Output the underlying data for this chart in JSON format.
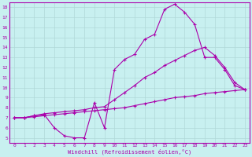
{
  "xlabel": "Windchill (Refroidissement éolien,°C)",
  "bg_color": "#c8f0f0",
  "grid_color": "#b0d8d8",
  "line_color": "#aa00aa",
  "xlim": [
    -0.5,
    23.5
  ],
  "ylim": [
    4.5,
    18.5
  ],
  "yticks": [
    5,
    6,
    7,
    8,
    9,
    10,
    11,
    12,
    13,
    14,
    15,
    16,
    17,
    18
  ],
  "xticks": [
    0,
    1,
    2,
    3,
    4,
    5,
    6,
    7,
    8,
    9,
    10,
    11,
    12,
    13,
    14,
    15,
    16,
    17,
    18,
    19,
    20,
    21,
    22,
    23
  ],
  "line1_x": [
    0,
    1,
    2,
    3,
    4,
    5,
    6,
    7,
    8,
    9,
    10,
    11,
    12,
    13,
    14,
    15,
    16,
    17,
    18,
    19,
    20,
    21,
    22,
    23
  ],
  "line1_y": [
    7.0,
    7.0,
    7.2,
    7.3,
    6.0,
    5.2,
    5.0,
    5.0,
    8.5,
    6.0,
    11.8,
    12.8,
    13.3,
    14.8,
    15.3,
    17.8,
    18.3,
    17.5,
    16.3,
    13.0,
    13.0,
    11.8,
    10.2,
    9.8
  ],
  "line2_x": [
    0,
    1,
    2,
    3,
    4,
    5,
    6,
    7,
    8,
    9,
    10,
    11,
    12,
    13,
    14,
    15,
    16,
    17,
    18,
    19,
    20,
    21,
    22,
    23
  ],
  "line2_y": [
    7.0,
    7.0,
    7.2,
    7.4,
    7.5,
    7.6,
    7.7,
    7.8,
    8.0,
    8.1,
    8.8,
    9.5,
    10.2,
    11.0,
    11.5,
    12.2,
    12.7,
    13.2,
    13.7,
    14.0,
    13.2,
    12.0,
    10.5,
    9.8
  ],
  "line3_x": [
    0,
    1,
    2,
    3,
    4,
    5,
    6,
    7,
    8,
    9,
    10,
    11,
    12,
    13,
    14,
    15,
    16,
    17,
    18,
    19,
    20,
    21,
    22,
    23
  ],
  "line3_y": [
    7.0,
    7.0,
    7.1,
    7.2,
    7.3,
    7.4,
    7.5,
    7.6,
    7.7,
    7.8,
    7.9,
    8.0,
    8.2,
    8.4,
    8.6,
    8.8,
    9.0,
    9.1,
    9.2,
    9.4,
    9.5,
    9.6,
    9.7,
    9.8
  ]
}
